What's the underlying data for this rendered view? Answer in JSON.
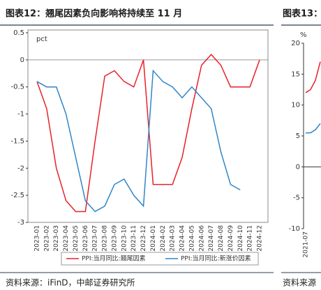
{
  "chart_data": [
    {
      "type": "line",
      "title": "图表12：翘尾因素负向影响将持续至 11 月",
      "unit": "pct",
      "categories": [
        "2023-01",
        "2023-02",
        "2023-03",
        "2023-04",
        "2023-05",
        "2023-06",
        "2023-07",
        "2023-08",
        "2023-09",
        "2023-10",
        "2023-11",
        "2023-12",
        "2024-01",
        "2024-02",
        "2024-03",
        "2024-04",
        "2024-05",
        "2024-06",
        "2024-07",
        "2024-08",
        "2024-09",
        "2024-10",
        "2024-11",
        "2024-12"
      ],
      "series": [
        {
          "name": "PPI:当月同比:翘尾因素",
          "color": "#e8202a",
          "values": [
            -0.4,
            -0.9,
            -2.0,
            -2.6,
            -2.8,
            -2.8,
            -1.5,
            -0.3,
            -0.2,
            -0.4,
            -0.5,
            0,
            -2.3,
            -2.3,
            -2.3,
            -1.8,
            -0.9,
            -0.1,
            0.1,
            -0.1,
            -0.5,
            -0.5,
            -0.5,
            0
          ]
        },
        {
          "name": "PPI:当月同比:新涨价因素",
          "color": "#2f86c8",
          "values": [
            -0.4,
            -0.5,
            -0.5,
            -1.0,
            -1.8,
            -2.6,
            -2.8,
            -2.7,
            -2.3,
            -2.2,
            -2.5,
            -2.7,
            -0.2,
            -0.4,
            -0.5,
            -0.7,
            -0.5,
            -0.7,
            -0.9,
            -1.7,
            -2.3,
            -2.4,
            null,
            null
          ]
        }
      ],
      "ylim": [
        -3,
        0.5
      ],
      "yticks": [
        0.5,
        0,
        -0.5,
        -1,
        -1.5,
        -2,
        -2.5,
        -3
      ],
      "legend": "bottom"
    },
    {
      "type": "line",
      "title": "图表13：",
      "unit": "%",
      "categories": [
        "2021-07",
        null,
        null,
        null
      ],
      "series": [
        {
          "name": null,
          "color": "#e8202a",
          "values": [
            12,
            12.5,
            14,
            17
          ]
        },
        {
          "name": null,
          "color": "#2f86c8",
          "values": [
            5.5,
            5.5,
            6,
            7
          ]
        }
      ],
      "ylim": [
        -10,
        20
      ],
      "yticks": [
        20,
        15,
        10,
        5,
        0,
        -5,
        -10
      ]
    }
  ],
  "footer": [
    "资料来源：iFinD，中邮证券研究所",
    "资料来源"
  ]
}
